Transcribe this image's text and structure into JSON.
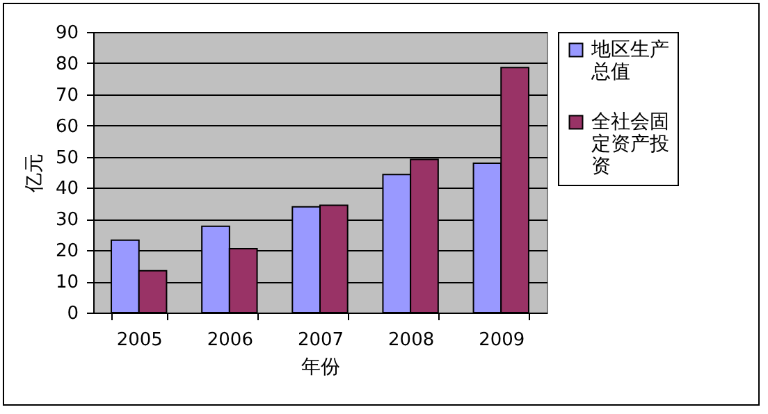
{
  "chart_data": {
    "type": "bar",
    "xlabel": "年份",
    "ylabel": "亿元",
    "categories": [
      "2005",
      "2006",
      "2007",
      "2008",
      "2009"
    ],
    "series": [
      {
        "name": "地区生产总值",
        "color": "#9999ff",
        "values": [
          23.2,
          27.7,
          33.9,
          44.3,
          47.9
        ]
      },
      {
        "name": "全社会固定资产投资",
        "color": "#993366",
        "values": [
          13.4,
          20.5,
          34.4,
          49.1,
          78.6
        ]
      }
    ],
    "ylim": [
      0,
      90
    ],
    "yticks": [
      0,
      10,
      20,
      30,
      40,
      50,
      60,
      70,
      80,
      90
    ],
    "grid": "y",
    "legend": "right"
  }
}
